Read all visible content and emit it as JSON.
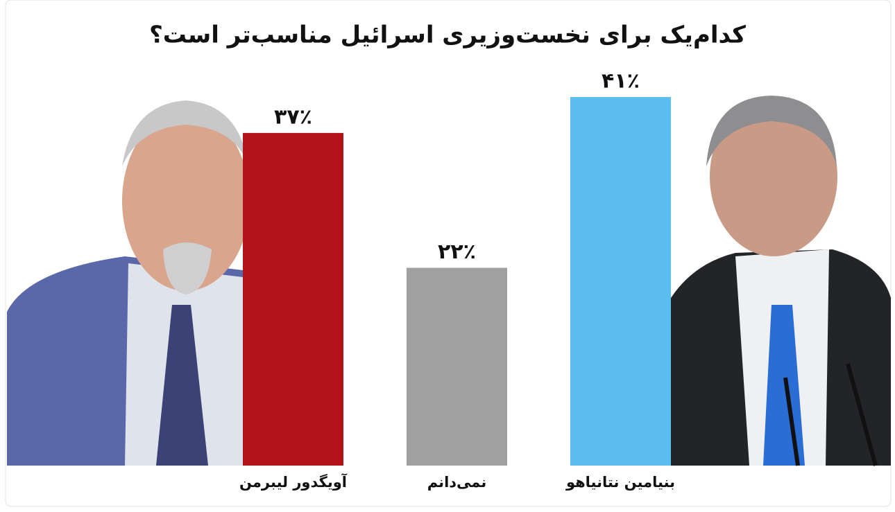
{
  "chart_data": {
    "type": "bar",
    "title": "کدام‌یک برای نخست‌وزیری اسرائیل مناسب‌تر است؟",
    "categories": [
      "آویگدور لیبرمن",
      "نمی‌دانم",
      "بنیامین نتانیاهو"
    ],
    "values": [
      37,
      22,
      41
    ],
    "value_labels": [
      "۳۷٪",
      "۲۲٪",
      "۴۱٪"
    ],
    "colors": [
      "#b3141c",
      "#a0a0a0",
      "#5bbdf0"
    ]
  }
}
